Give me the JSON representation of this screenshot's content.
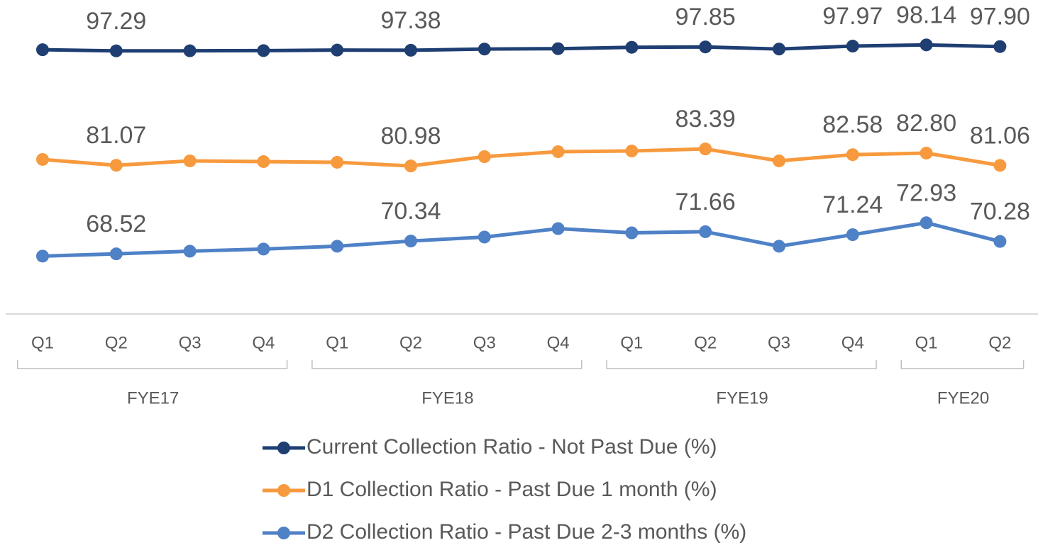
{
  "chart_data": {
    "type": "line",
    "groups": [
      {
        "name": "FYE17",
        "categories": [
          "Q1",
          "Q2",
          "Q3",
          "Q4"
        ]
      },
      {
        "name": "FYE18",
        "categories": [
          "Q1",
          "Q2",
          "Q3",
          "Q4"
        ]
      },
      {
        "name": "FYE19",
        "categories": [
          "Q1",
          "Q2",
          "Q3",
          "Q4"
        ]
      },
      {
        "name": "FYE20",
        "categories": [
          "Q1",
          "Q2"
        ]
      }
    ],
    "series": [
      {
        "name": "Current Collection Ratio - Not Past Due (%)",
        "color": "#1f3f73",
        "values": [
          97.45,
          97.29,
          97.3,
          97.33,
          97.4,
          97.38,
          97.55,
          97.6,
          97.8,
          97.85,
          97.55,
          97.97,
          98.14,
          97.9
        ],
        "value_labels": [
          null,
          "97.29",
          null,
          null,
          null,
          "97.38",
          null,
          null,
          null,
          "97.85",
          null,
          "97.97",
          "98.14",
          "97.90"
        ]
      },
      {
        "name": "D1 Collection Ratio - Past Due 1 month (%)",
        "color": "#f79a3e",
        "values": [
          81.9,
          81.07,
          81.7,
          81.6,
          81.5,
          80.98,
          82.3,
          83.0,
          83.1,
          83.39,
          81.7,
          82.58,
          82.8,
          81.06
        ],
        "value_labels": [
          null,
          "81.07",
          null,
          null,
          null,
          "80.98",
          null,
          null,
          null,
          "83.39",
          null,
          "82.58",
          "82.80",
          "81.06"
        ]
      },
      {
        "name": "D2 Collection Ratio - Past Due 2-3 months (%)",
        "color": "#4f81c7",
        "values": [
          68.2,
          68.52,
          68.9,
          69.2,
          69.6,
          70.34,
          70.9,
          72.1,
          71.5,
          71.66,
          69.6,
          71.24,
          72.93,
          70.28
        ],
        "value_labels": [
          null,
          "68.52",
          null,
          null,
          null,
          "70.34",
          null,
          null,
          null,
          "71.66",
          null,
          "71.24",
          "72.93",
          "70.28"
        ]
      }
    ],
    "ylim": [
      60,
      104.5
    ]
  }
}
